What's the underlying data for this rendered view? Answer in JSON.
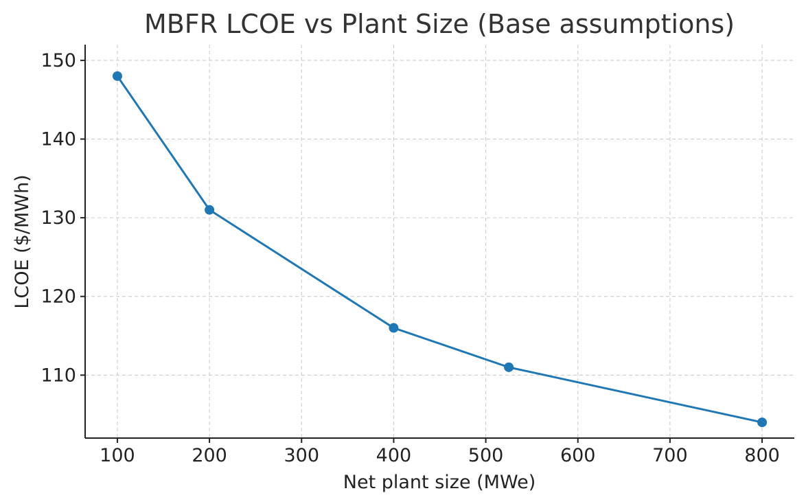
{
  "chart_data": {
    "type": "line",
    "title": "MBFR LCOE vs Plant Size (Base assumptions)",
    "xlabel": "Net plant size (MWe)",
    "ylabel": "LCOE ($/MWh)",
    "xlim": [
      65,
      835
    ],
    "ylim": [
      102,
      152
    ],
    "xticks": [
      100,
      200,
      300,
      400,
      500,
      600,
      700,
      800
    ],
    "yticks": [
      110,
      120,
      130,
      140,
      150
    ],
    "grid": true,
    "x": [
      100,
      200,
      400,
      525,
      800
    ],
    "series": [
      {
        "values": [
          148,
          131,
          116,
          111,
          104
        ],
        "color": "#1f77b4",
        "marker": "circle"
      }
    ]
  }
}
